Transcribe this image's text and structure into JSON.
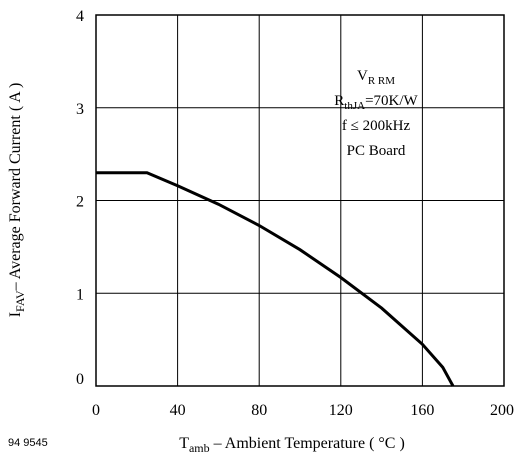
{
  "figure_id": "94 9545",
  "chart_data": {
    "type": "line",
    "xlabel": {
      "main": "T",
      "sub": "amb",
      "rest": " – Ambient Temperature ( °C )"
    },
    "ylabel": {
      "main": "I",
      "sub": "FAV",
      "rest": "– Average Forward Current ( A )"
    },
    "xlim": [
      0,
      200
    ],
    "ylim": [
      0,
      4
    ],
    "xticks": [
      0,
      40,
      80,
      120,
      160,
      200
    ],
    "yticks": [
      0,
      1,
      2,
      3,
      4
    ],
    "grid": true,
    "series": [
      {
        "x": [
          0,
          25,
          40,
          60,
          80,
          100,
          120,
          140,
          160,
          170,
          175
        ],
        "y": [
          2.3,
          2.3,
          2.16,
          1.96,
          1.73,
          1.47,
          1.17,
          0.84,
          0.45,
          0.2,
          0
        ],
        "color": "#000000"
      }
    ],
    "annotations": {
      "line1": {
        "main": "V",
        "sub": "R RM",
        "rest": ""
      },
      "line2": {
        "main": "R",
        "sub": "thJA",
        "rest": "=70K/W"
      },
      "line3": "f ≤ 200kHz",
      "line4": "PC Board"
    }
  }
}
